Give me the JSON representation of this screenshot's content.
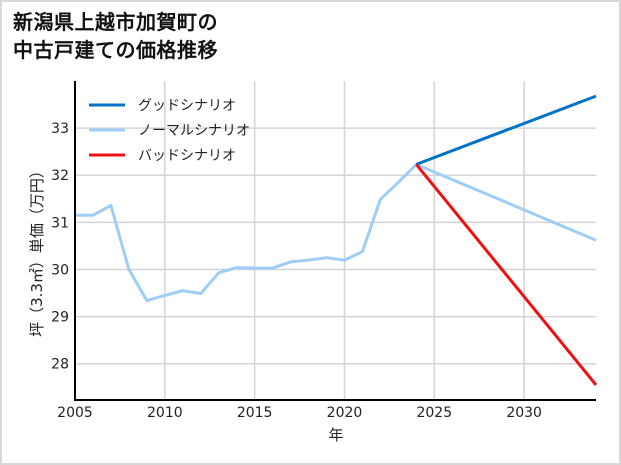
{
  "title": {
    "line1": "新潟県上越市加賀町の",
    "line2": "中古戸建ての価格推移"
  },
  "chart_data": {
    "type": "line",
    "title": "新潟県上越市加賀町の中古戸建ての価格推移",
    "xlabel": "年",
    "ylabel": "坪（3.3㎡）単価（万円）",
    "xlim": [
      2005,
      2034
    ],
    "ylim": [
      27.23,
      34.0
    ],
    "xticks": [
      2005,
      2010,
      2015,
      2020,
      2025,
      2030
    ],
    "yticks": [
      28,
      29,
      30,
      31,
      32,
      33
    ],
    "grid": true,
    "legend_position": "upper left",
    "series": [
      {
        "name": "グッドシナリオ",
        "color": "#0072c6",
        "x": [
          2024,
          2034
        ],
        "values": [
          32.23,
          33.68
        ]
      },
      {
        "name": "ノーマルシナリオ",
        "color": "#9ecdf8",
        "x": [
          2005,
          2006,
          2007,
          2008,
          2009,
          2010,
          2011,
          2012,
          2013,
          2014,
          2015,
          2016,
          2017,
          2018,
          2019,
          2020,
          2021,
          2022,
          2023,
          2024,
          2034
        ],
        "values": [
          31.15,
          31.15,
          31.36,
          30.0,
          29.34,
          29.45,
          29.55,
          29.49,
          29.93,
          30.04,
          30.03,
          30.03,
          30.16,
          30.2,
          30.25,
          30.2,
          30.38,
          31.49,
          31.85,
          32.23,
          30.62
        ]
      },
      {
        "name": "バッドシナリオ",
        "color": "#ee1111",
        "x": [
          2024,
          2034
        ],
        "values": [
          32.23,
          27.55
        ]
      }
    ]
  },
  "colors": {
    "grid": "#d4d4d4",
    "axis": "#000000",
    "border": "#d8d8d8"
  }
}
